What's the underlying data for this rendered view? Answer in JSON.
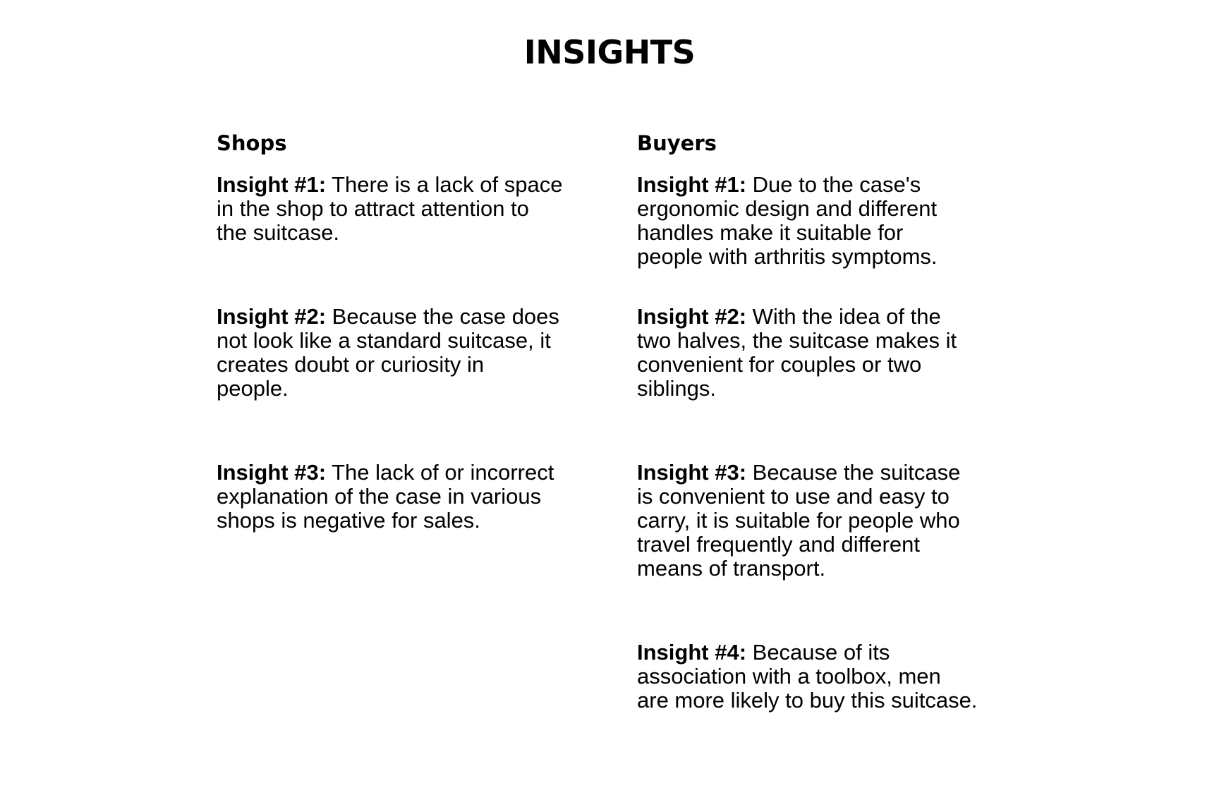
{
  "title": "INSIGHTS",
  "columns": [
    {
      "heading": "Shops",
      "insights": [
        {
          "label": "Insight #1:",
          "lines": [
            "There is a lack of space",
            "in the shop to attract attention to",
            "the suitcase."
          ]
        },
        {
          "label": "Insight #2:",
          "lines": [
            "Because the case does",
            "not look like a standard suitcase, it",
            "creates doubt or curiosity in",
            "people."
          ]
        },
        {
          "label": "Insight #3:",
          "lines": [
            "The lack of or incorrect",
            "explanation of the case in various",
            "shops is negative for sales."
          ]
        }
      ]
    },
    {
      "heading": "Buyers",
      "insights": [
        {
          "label": "Insight #1:",
          "lines": [
            "Due to the case's",
            "ergonomic design and different",
            "handles make it suitable for",
            "people with arthritis symptoms."
          ]
        },
        {
          "label": "Insight #2:",
          "lines": [
            "With the idea of the",
            "two halves, the suitcase makes it",
            "convenient for couples or two",
            "siblings."
          ]
        },
        {
          "label": "Insight #3:",
          "lines": [
            "Because the suitcase",
            "is convenient to use and easy to",
            "carry, it is suitable for people who",
            "travel frequently and different",
            "means of transport."
          ]
        },
        {
          "label": "Insight #4:",
          "lines": [
            "Because of its",
            "association with a toolbox, men",
            "are more likely to buy this suitcase."
          ]
        }
      ]
    }
  ]
}
